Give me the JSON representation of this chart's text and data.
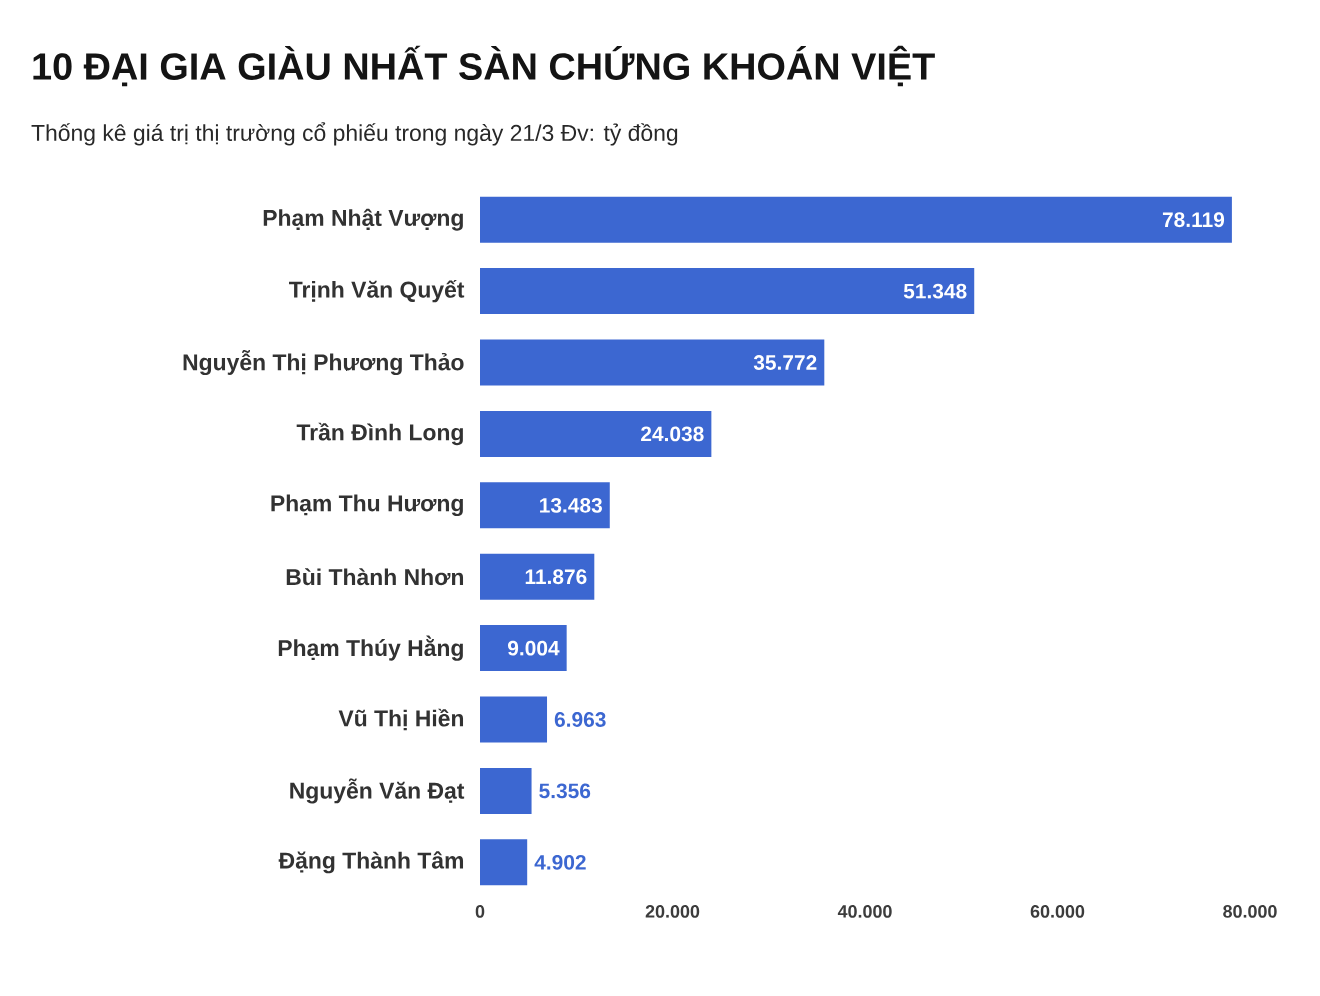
{
  "chart_data": {
    "type": "bar",
    "orientation": "horizontal",
    "title": "10 ĐẠI GIA GIÀU NHẤT SÀN CHỨNG KHOÁN VIỆT",
    "subtitle": "Thống kê giá trị thị trường cổ phiếu trong ngày 21/3 Đv: tỷ đồng",
    "categories": [
      "Phạm Nhật Vượng",
      "Trịnh Văn Quyết",
      "Nguyễn Thị Phương Thảo",
      "Trần Đình Long",
      "Phạm Thu Hương",
      "Bùi Thành Nhơn",
      "Phạm Thúy Hằng",
      "Vũ Thị Hiền",
      "Nguyễn Văn Đạt",
      "Đặng Thành Tâm"
    ],
    "values": [
      78119,
      51348,
      35772,
      24038,
      13483,
      11876,
      9004,
      6963,
      5356,
      4902
    ],
    "value_labels": [
      "78.119",
      "51.348",
      "35.772",
      "24.038",
      "13.483",
      "11.876",
      "9.004",
      "6.963",
      "5.356",
      "4.902"
    ],
    "color": "#3c67d1",
    "xlim": [
      0,
      80000
    ],
    "xticks": [
      0,
      {
        "value": 20000,
        "label": "20.000"
      },
      {
        "value": 40000,
        "label": "40.000"
      },
      {
        "value": 60000,
        "label": "60.000"
      },
      {
        "value": 80000,
        "label": "80.000"
      }
    ]
  }
}
